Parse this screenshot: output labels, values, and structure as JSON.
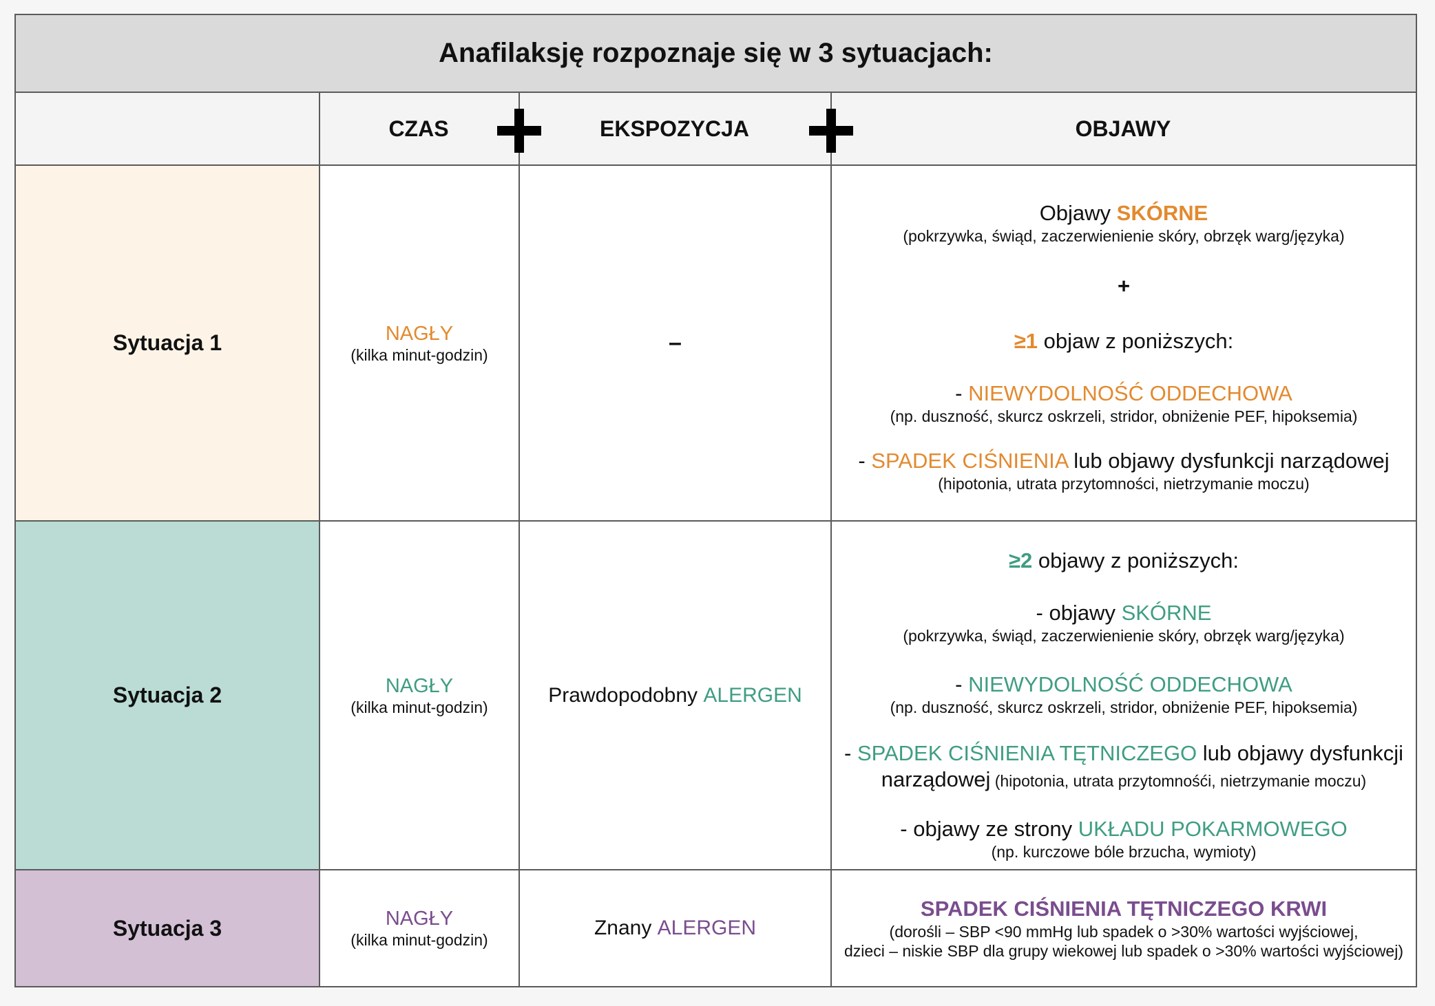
{
  "title": "Anafilaksję rozpoznaje się w 3 sytuacjach:",
  "headers": {
    "czas": "CZAS",
    "ekspozycja": "EKSPOZYCJA",
    "objawy": "OBJAWY"
  },
  "colors": {
    "orange": "#e28a2f",
    "green": "#3f9d82",
    "purple": "#7a4d8e",
    "row1_bg": "#fdf4e7",
    "row2_bg": "#badcd4",
    "row3_bg": "#d3c0d5",
    "header_bg": "#dadada"
  },
  "rows": [
    {
      "label": "Sytuacja 1",
      "czas": "NAGŁY",
      "czas_sub": "(kilka minut-godzin)",
      "ekspozycja": "–",
      "objawy": {
        "l1a": "Objawy ",
        "l1b": "SKÓRNE",
        "l1sub": "(pokrzywka, świąd, zaczerwienienie skóry, obrzęk warg/języka)",
        "plus": "+",
        "l2a": "≥1",
        "l2b": " objaw z poniższych:",
        "l3a": "- ",
        "l3b": "NIEWYDOLNOŚĆ ODDECHOWA",
        "l3sub": "(np. duszność, skurcz oskrzeli, stridor, obniżenie PEF, hipoksemia)",
        "l4a": "- ",
        "l4b": "SPADEK CIŚNIENIA",
        "l4c": " lub objawy dysfunkcji narządowej",
        "l4sub": "(hipotonia, utrata przytomności, nietrzymanie moczu)"
      }
    },
    {
      "label": "Sytuacja 2",
      "czas": "NAGŁY",
      "czas_sub": "(kilka minut-godzin)",
      "ekspozycja_a": "Prawdopodobny ",
      "ekspozycja_b": "ALERGEN",
      "objawy": {
        "l1a": "≥2",
        "l1b": " objawy z poniższych:",
        "l2a": "- objawy ",
        "l2b": "SKÓRNE",
        "l2sub": "(pokrzywka, świąd, zaczerwienienie skóry, obrzęk warg/języka)",
        "l3a": "- ",
        "l3b": "NIEWYDOLNOŚĆ ODDECHOWA",
        "l3sub": "(np. duszność, skurcz oskrzeli, stridor, obniżenie PEF, hipoksemia)",
        "l4a": "- ",
        "l4b": "SPADEK CIŚNIENIA TĘTNICZEGO",
        "l4c": " lub objawy dysfunkcji",
        "l4d": "narządowej",
        "l4sub": " (hipotonia, utrata przytomnośći, nietrzymanie moczu)",
        "l5a": "- objawy ze strony ",
        "l5b": "UKŁADU POKARMOWEGO",
        "l5sub": "(np. kurczowe bóle brzucha, wymioty)"
      }
    },
    {
      "label": "Sytuacja 3",
      "czas": "NAGŁY",
      "czas_sub": "(kilka minut-godzin)",
      "ekspozycja_a": "Znany ",
      "ekspozycja_b": "ALERGEN",
      "objawy": {
        "l1": "SPADEK CIŚNIENIA TĘTNICZEGO KRWI",
        "l2": "(dorośli – SBP <90 mmHg lub spadek o >30% wartości wyjściowej,",
        "l3": "dzieci – niskie SBP dla grupy wiekowej lub spadek o >30% wartości wyjściowej)"
      }
    }
  ]
}
